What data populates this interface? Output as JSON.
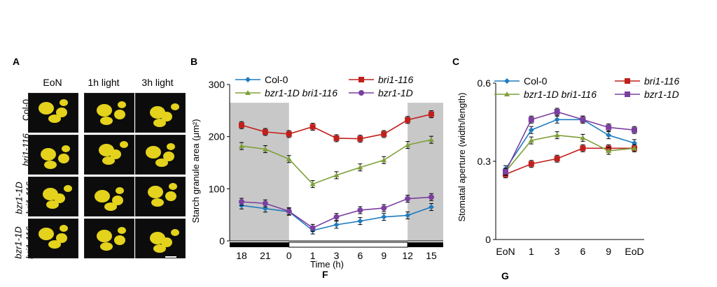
{
  "panel_labels": {
    "a": "A",
    "b": "B",
    "c": "C",
    "f": "F",
    "g": "G"
  },
  "panel_a": {
    "columns": [
      "EoN",
      "1h light",
      "3h light"
    ],
    "rows": [
      {
        "label": "Col-0",
        "italic": false
      },
      {
        "label": "bri1-116",
        "italic": true
      },
      {
        "label_line1": "bzr1-1D",
        "label_line2": "bri1-116",
        "italic": true
      },
      {
        "label": "bzr1-1D",
        "italic": true
      }
    ],
    "image_color": "#e4d21c"
  },
  "chart_data": [
    {
      "type": "line",
      "ylabel": "Starch granule area (μm²)",
      "xlabel": "Time (h)",
      "x_ticks": [
        "18",
        "21",
        "0",
        "1",
        "3",
        "6",
        "9",
        "12",
        "15"
      ],
      "ylim": [
        0,
        300
      ],
      "y_ticks": [
        0,
        100,
        200,
        300
      ],
      "shaded_regions": [
        [
          0,
          2
        ],
        [
          7,
          8
        ]
      ],
      "series": [
        {
          "name": "Col-0",
          "color": "#1f7bbf",
          "marker": "diamond",
          "values": [
            68,
            62,
            56,
            20,
            31,
            38,
            46,
            49,
            65
          ]
        },
        {
          "name": "bri1-116",
          "color": "#c0201c",
          "marker": "square",
          "values": [
            222,
            209,
            205,
            219,
            197,
            196,
            205,
            232,
            243
          ]
        },
        {
          "name": "bzr1-1D bri1-116",
          "color": "#7ea038",
          "marker": "triangle",
          "values": [
            182,
            176,
            157,
            109,
            126,
            141,
            155,
            184,
            194
          ]
        },
        {
          "name": "bzr1-1D",
          "color": "#7b3fa0",
          "marker": "circle",
          "values": [
            75,
            72,
            57,
            25,
            46,
            59,
            63,
            81,
            84
          ]
        }
      ]
    },
    {
      "type": "line",
      "ylabel": "Stomatal aperture (width/length)",
      "x_ticks": [
        "EoN",
        "1",
        "3",
        "6",
        "9",
        "EoD"
      ],
      "ylim": [
        0,
        0.6
      ],
      "y_ticks": [
        0,
        0.3,
        0.6
      ],
      "series": [
        {
          "name": "Col-0",
          "color": "#1f7bbf",
          "marker": "diamond",
          "values": [
            0.27,
            0.42,
            0.46,
            0.46,
            0.4,
            0.37
          ]
        },
        {
          "name": "bri1-116",
          "color": "#c0201c",
          "marker": "square",
          "values": [
            0.25,
            0.29,
            0.31,
            0.35,
            0.35,
            0.35
          ]
        },
        {
          "name": "bzr1-1D bri1-116",
          "color": "#7ea038",
          "marker": "triangle",
          "values": [
            0.26,
            0.38,
            0.4,
            0.39,
            0.34,
            0.35
          ]
        },
        {
          "name": "bzr1-1D",
          "color": "#7b3fa0",
          "marker": "square",
          "values": [
            0.26,
            0.46,
            0.49,
            0.46,
            0.43,
            0.42
          ]
        }
      ]
    }
  ]
}
